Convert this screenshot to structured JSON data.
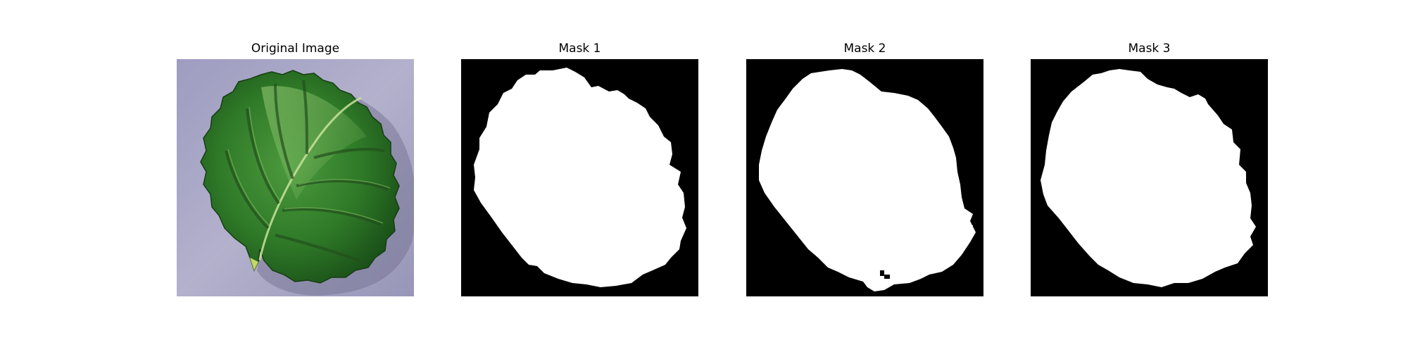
{
  "figure": {
    "panels": [
      {
        "title": "Original Image",
        "kind": "photo",
        "subject": "leaf-photo"
      },
      {
        "title": "Mask 1",
        "kind": "mask",
        "subject": "leaf-mask"
      },
      {
        "title": "Mask 2",
        "kind": "mask",
        "subject": "leaf-mask"
      },
      {
        "title": "Mask 3",
        "kind": "mask",
        "subject": "leaf-mask"
      }
    ]
  },
  "colors": {
    "background": "#ffffff",
    "mask_background": "#000000",
    "mask_foreground": "#ffffff",
    "photo_surface": "#a9a7c6",
    "leaf_dark": "#1f5c1c",
    "leaf_mid": "#3f8a35",
    "leaf_light": "#7ab85a"
  }
}
